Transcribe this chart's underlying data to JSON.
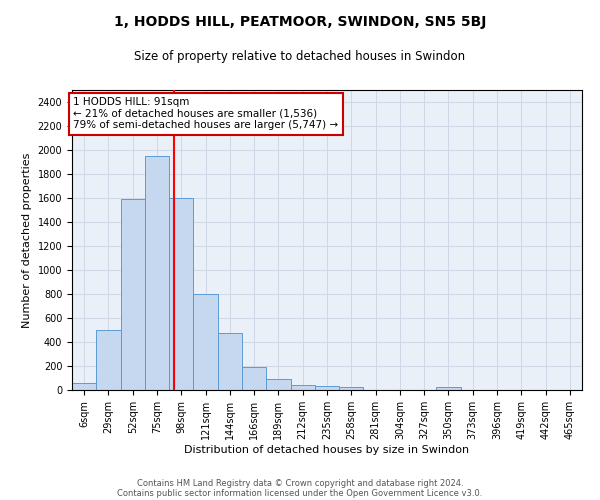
{
  "title1": "1, HODDS HILL, PEATMOOR, SWINDON, SN5 5BJ",
  "title2": "Size of property relative to detached houses in Swindon",
  "xlabel": "Distribution of detached houses by size in Swindon",
  "ylabel": "Number of detached properties",
  "footer1": "Contains HM Land Registry data © Crown copyright and database right 2024.",
  "footer2": "Contains public sector information licensed under the Open Government Licence v3.0.",
  "annotation_line1": "1 HODDS HILL: 91sqm",
  "annotation_line2": "← 21% of detached houses are smaller (1,536)",
  "annotation_line3": "79% of semi-detached houses are larger (5,747) →",
  "bar_labels": [
    "6sqm",
    "29sqm",
    "52sqm",
    "75sqm",
    "98sqm",
    "121sqm",
    "144sqm",
    "166sqm",
    "189sqm",
    "212sqm",
    "235sqm",
    "258sqm",
    "281sqm",
    "304sqm",
    "327sqm",
    "350sqm",
    "373sqm",
    "396sqm",
    "419sqm",
    "442sqm",
    "465sqm"
  ],
  "bar_values": [
    60,
    500,
    1590,
    1950,
    1600,
    800,
    475,
    195,
    95,
    40,
    30,
    22,
    0,
    0,
    0,
    22,
    0,
    0,
    0,
    0,
    0
  ],
  "bar_color": "#c5d8f0",
  "bar_edge_color": "#5b9bd5",
  "red_line_index": 3.72,
  "ylim": [
    0,
    2500
  ],
  "yticks": [
    0,
    200,
    400,
    600,
    800,
    1000,
    1200,
    1400,
    1600,
    1800,
    2000,
    2200,
    2400
  ],
  "grid_color": "#d0d8e8",
  "bg_color": "#eaf0f8",
  "annotation_box_color": "#ffffff",
  "annotation_box_edge": "#cc0000",
  "title1_fontsize": 10,
  "title2_fontsize": 8.5,
  "ylabel_fontsize": 8,
  "xlabel_fontsize": 8,
  "tick_fontsize": 7,
  "footer_fontsize": 6,
  "ann_fontsize": 7.5
}
